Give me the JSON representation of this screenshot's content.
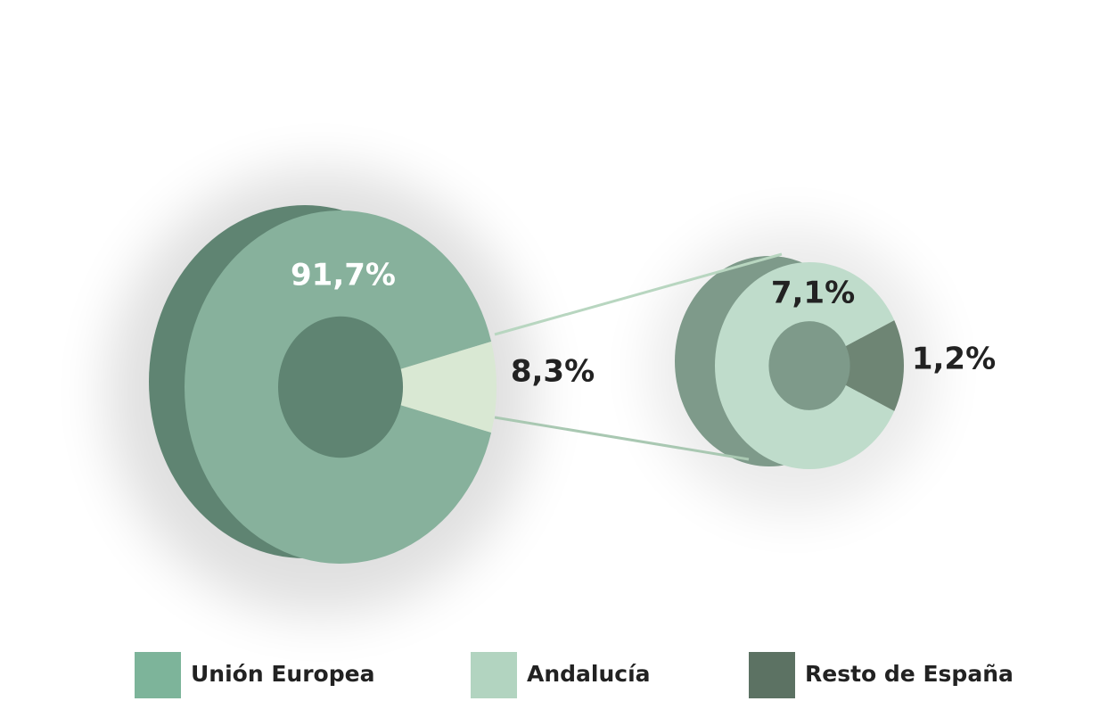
{
  "chart_data": {
    "type": "pie-of-pie",
    "pie": {
      "values": [
        91.7,
        8.3
      ],
      "value_labels": [
        "91,7%",
        "8,3%"
      ],
      "colors": [
        "#87b19c",
        "#d9e8d3"
      ]
    },
    "sub_pie": {
      "values": [
        7.1,
        1.2
      ],
      "value_labels": [
        "7,1%",
        "1,2%"
      ],
      "colors": [
        "#bfdccb",
        "#6e8574"
      ]
    },
    "legend": [
      {
        "name": "Unión Europea",
        "color": "#7db49a"
      },
      {
        "name": "Andalucía",
        "color": "#b2d4c0"
      },
      {
        "name": "Resto de España",
        "color": "#5c7263"
      }
    ]
  }
}
